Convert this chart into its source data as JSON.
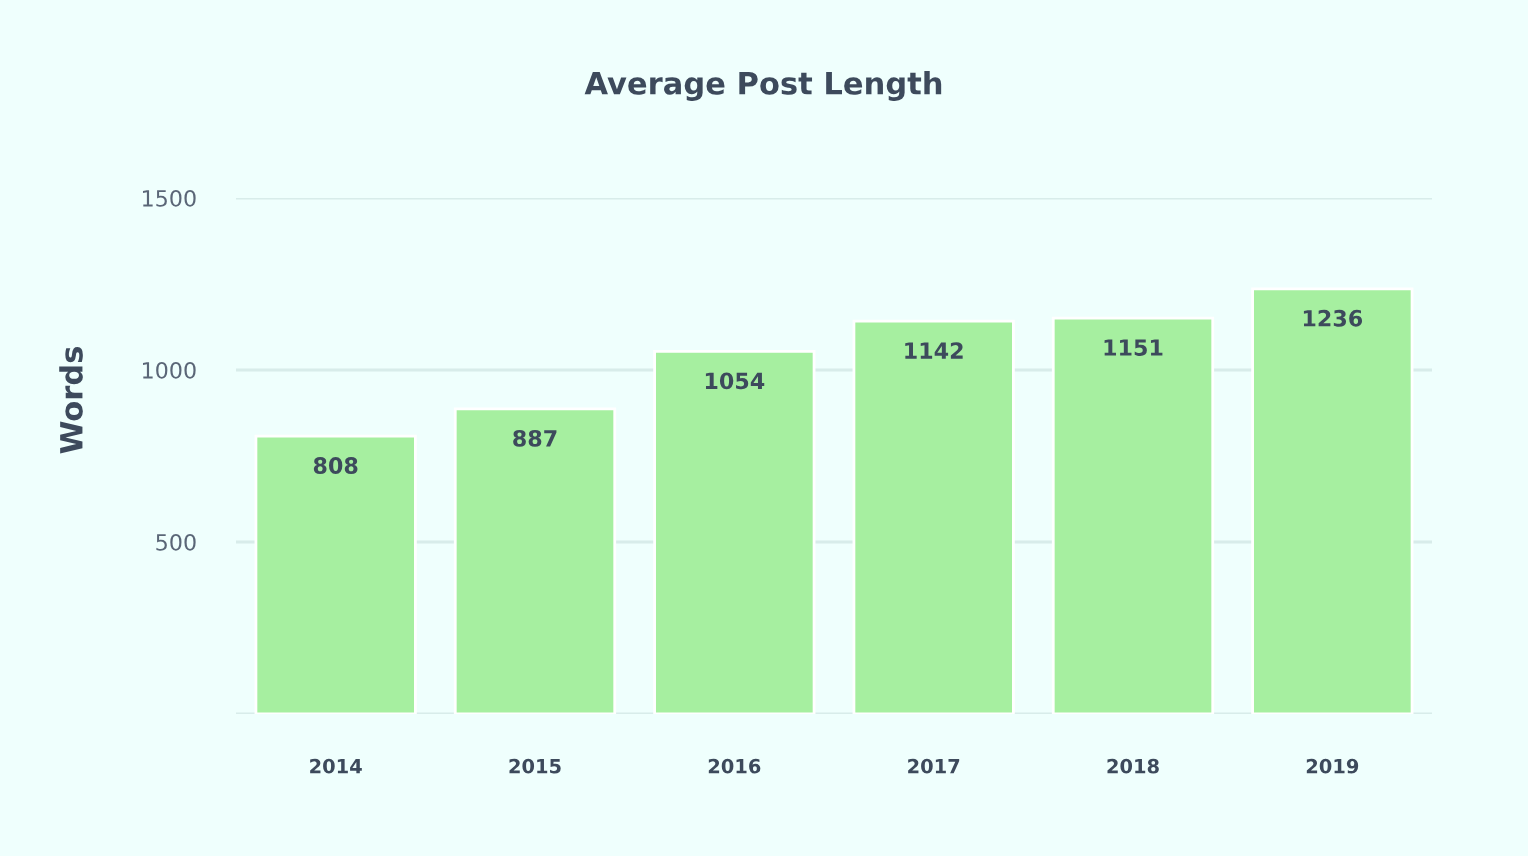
{
  "chart_data": {
    "type": "bar",
    "title": "Average Post Length",
    "ylabel": "Words",
    "categories": [
      "2014",
      "2015",
      "2016",
      "2017",
      "2018",
      "2019"
    ],
    "values": [
      808,
      887,
      1054,
      1142,
      1151,
      1236
    ],
    "color": "#a6efa0",
    "ylim": [
      0,
      1500
    ],
    "yticks": [
      {
        "value": 0,
        "label": null
      },
      500,
      1000,
      1500
    ],
    "grid": "y",
    "data_labels": true
  }
}
